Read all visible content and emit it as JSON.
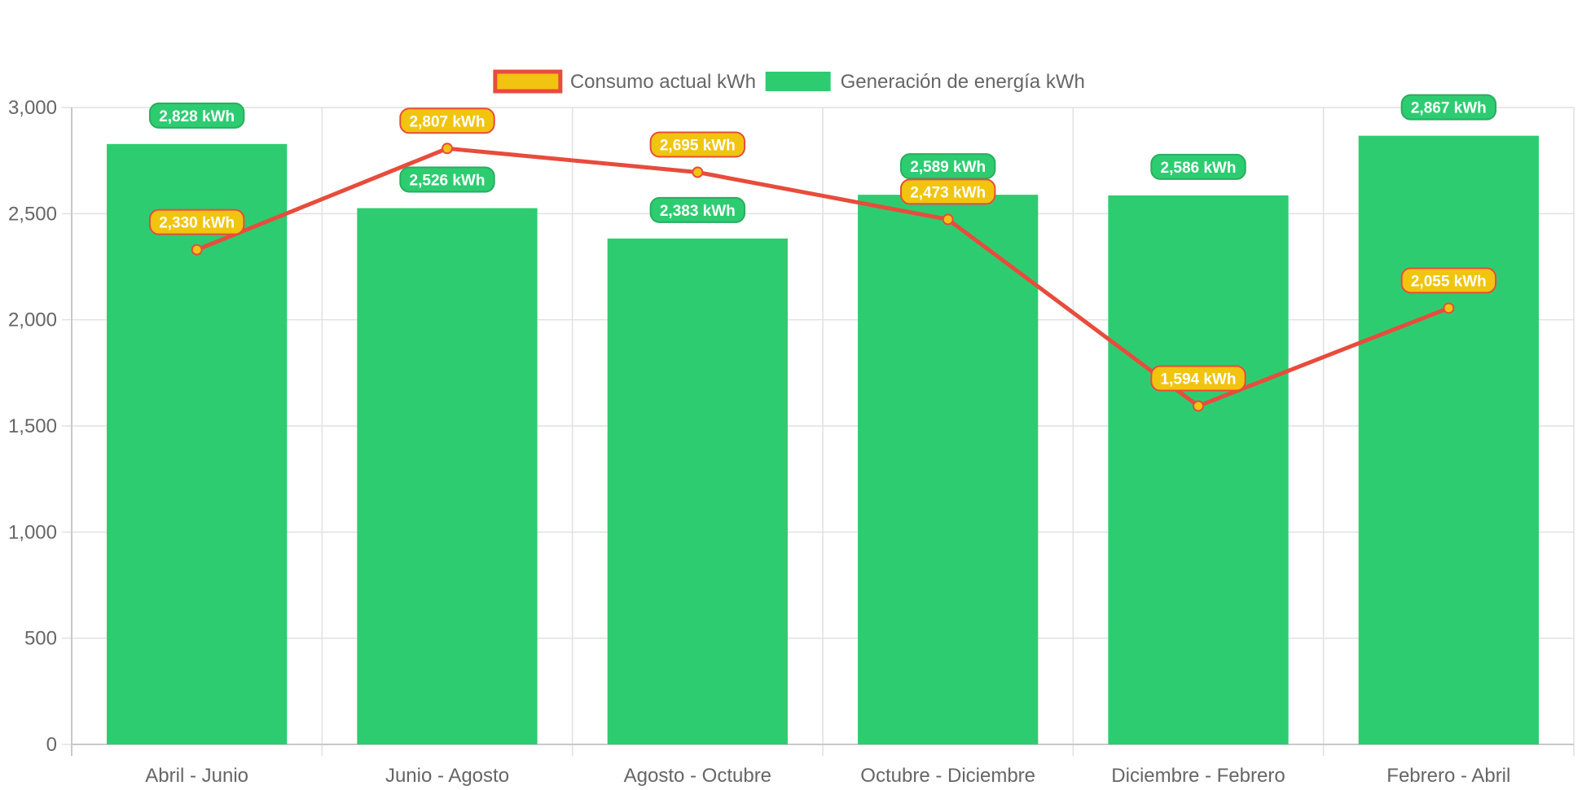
{
  "chart_data": {
    "type": "bar",
    "categories": [
      "Abril - Junio",
      "Junio - Agosto",
      "Agosto - Octubre",
      "Octubre - Diciembre",
      "Diciembre - Febrero",
      "Febrero - Abril"
    ],
    "series": [
      {
        "name": "Consumo actual kWh",
        "type": "line",
        "values": [
          2330,
          2807,
          2695,
          2473,
          1594,
          2055
        ],
        "labels": [
          "2,330 kWh",
          "2,807 kWh",
          "2,695 kWh",
          "2,473 kWh",
          "1,594 kWh",
          "2,055 kWh"
        ],
        "color": "#e74c3c",
        "fill": "#f1c40f"
      },
      {
        "name": "Generación de energía kWh",
        "type": "bar",
        "values": [
          2828,
          2526,
          2383,
          2589,
          2586,
          2867
        ],
        "labels": [
          "2,828 kWh",
          "2,526 kWh",
          "2,383 kWh",
          "2,589 kWh",
          "2,586 kWh",
          "2,867 kWh"
        ],
        "color": "#2ecc71"
      }
    ],
    "ylim": [
      0,
      3000
    ],
    "yticks": [
      0,
      500,
      1000,
      1500,
      2000,
      2500,
      3000
    ],
    "ytick_labels": [
      "0",
      "500",
      "1,000",
      "1,500",
      "2,000",
      "2,500",
      "3,000"
    ],
    "title": "",
    "xlabel": "",
    "ylabel": "",
    "grid": true,
    "legend_position": "top"
  }
}
